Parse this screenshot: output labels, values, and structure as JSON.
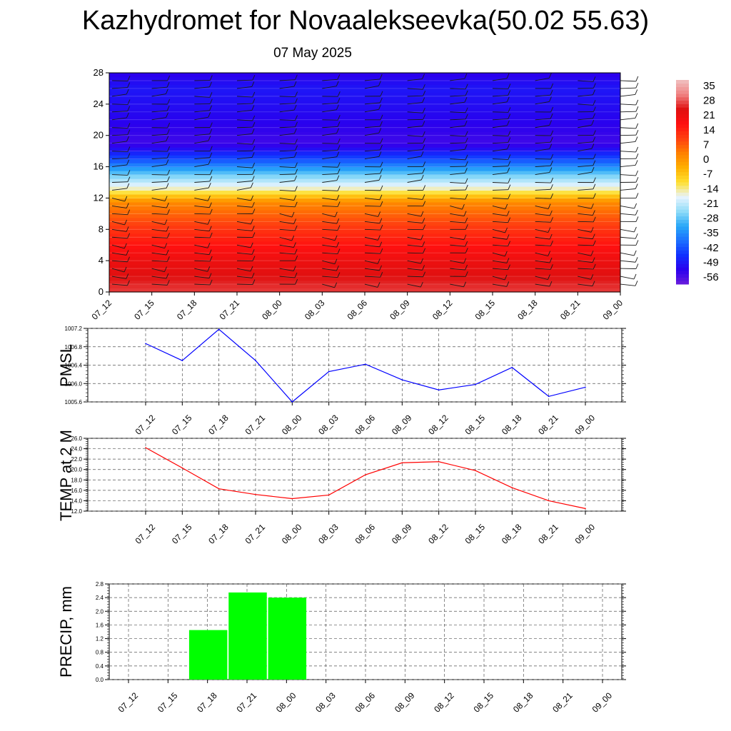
{
  "header": {
    "title": "Kazhydromet for Novaalekseevka(50.02 55.63)",
    "date": "07 May 2025"
  },
  "time_labels": [
    "07_12",
    "07_15",
    "07_18",
    "07_21",
    "08_00",
    "08_03",
    "08_06",
    "08_09",
    "08_12",
    "08_15",
    "08_18",
    "08_21",
    "09_00"
  ],
  "colors": {
    "pmsl_line": "#0000ff",
    "temp_line": "#ff0000",
    "precip_bar": "#00ff00",
    "colorbar": [
      "#6a1cdc",
      "#2a00ee",
      "#1030ff",
      "#1c70ff",
      "#28a8f8",
      "#90dcf8",
      "#e8f4ff",
      "#ffe030",
      "#ffb000",
      "#ff8000",
      "#ff4010",
      "#ff1010",
      "#e01010",
      "#f08080",
      "#f0c0c0"
    ]
  },
  "chart_data": [
    {
      "type": "heatmap",
      "ylabel": "",
      "ylim": [
        0,
        28
      ],
      "yticks": [
        "0",
        "4",
        "8",
        "12",
        "16",
        "20",
        "24",
        "28"
      ],
      "x": [
        "07_12",
        "07_15",
        "07_18",
        "07_21",
        "08_00",
        "08_03",
        "08_06",
        "08_09",
        "08_12",
        "08_15",
        "08_18",
        "08_21",
        "09_00"
      ],
      "colorbar": {
        "labels": [
          "35",
          "28",
          "21",
          "14",
          "7",
          "0",
          "-7",
          "-14",
          "-21",
          "-28",
          "-35",
          "-42",
          "-49",
          "-56"
        ],
        "range": [
          -63,
          42
        ]
      },
      "description_levels": [
        {
          "y": 0,
          "value": 30
        },
        {
          "y": 4,
          "value": 24
        },
        {
          "y": 8,
          "value": 14
        },
        {
          "y": 11.5,
          "value": 3
        },
        {
          "y": 13,
          "value": -14
        },
        {
          "y": 15,
          "value": -28
        },
        {
          "y": 17,
          "value": -45
        },
        {
          "y": 19,
          "value": -58
        },
        {
          "y": 22,
          "value": -55
        },
        {
          "y": 26,
          "value": -52
        },
        {
          "y": 28,
          "value": -56
        }
      ]
    },
    {
      "type": "line",
      "ylabel": "PMSL",
      "ylim": [
        1005.6,
        1007.2
      ],
      "yticks": [
        "1005.6",
        "1006.0",
        "1006.4",
        "1006.8",
        "1007.2"
      ],
      "x": [
        "07_12",
        "07_15",
        "07_18",
        "07_21",
        "08_00",
        "08_03",
        "08_06",
        "08_09",
        "08_12",
        "08_15",
        "08_18",
        "08_21",
        "09_00"
      ],
      "series": [
        {
          "values": [
            1006.87,
            1006.5,
            1007.18,
            1006.5,
            1005.6,
            1006.26,
            1006.42,
            1006.08,
            1005.86,
            1005.98,
            1006.35,
            1005.72,
            1005.92
          ]
        }
      ]
    },
    {
      "type": "line",
      "ylabel": "TEMP at 2 M",
      "ylim": [
        12.0,
        26.0
      ],
      "yticks": [
        "12.0",
        "14.0",
        "16.0",
        "18.0",
        "20.0",
        "22.0",
        "24.0",
        "26.0"
      ],
      "x": [
        "07_12",
        "07_15",
        "07_18",
        "07_21",
        "08_00",
        "08_03",
        "08_06",
        "08_09",
        "08_12",
        "08_15",
        "08_18",
        "08_21",
        "09_00"
      ],
      "series": [
        {
          "values": [
            24.2,
            20.3,
            16.3,
            15.2,
            14.4,
            15.1,
            19.0,
            21.3,
            21.5,
            19.8,
            16.5,
            14.0,
            12.5
          ]
        }
      ]
    },
    {
      "type": "bar",
      "ylabel": "PRECIP, mm",
      "ylim": [
        0.0,
        2.8
      ],
      "yticks": [
        "0.0",
        "0.4",
        "0.8",
        "1.2",
        "1.6",
        "2.0",
        "2.4",
        "2.8"
      ],
      "x": [
        "07_12",
        "07_15",
        "07_18",
        "07_21",
        "08_00",
        "08_03",
        "08_06",
        "08_09",
        "08_12",
        "08_15",
        "08_18",
        "08_21",
        "09_00"
      ],
      "values": [
        0,
        0,
        1.45,
        2.55,
        2.4,
        0,
        0,
        0,
        0,
        0,
        0,
        0,
        0
      ]
    }
  ]
}
